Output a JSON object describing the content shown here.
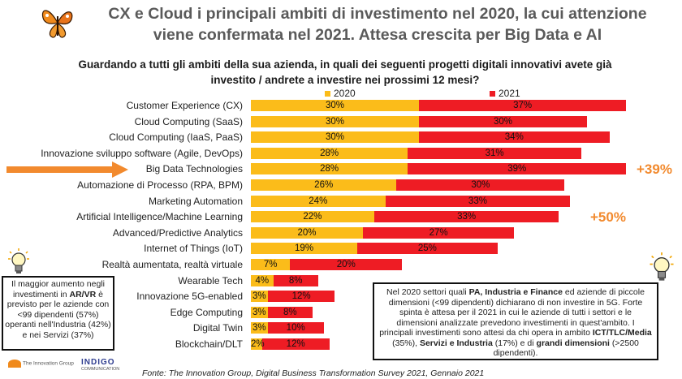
{
  "header": {
    "title_line1": "CX e Cloud i principali ambiti di investimento nel 2020, la cui attenzione",
    "title_line2": "viene confermata nel 2021. Attesa crescita per Big Data e AI",
    "question_line1": "Guardando a tutti gli ambiti della sua azienda, in quali dei seguenti progetti digitali innovativi avete già",
    "question_line2": "investito / andrete a investire nei prossimi 12 mesi?"
  },
  "colors": {
    "y2020": "#fbbc1a",
    "y2021": "#ee1c24",
    "growth": "#f28a2e",
    "title": "#5a5a5a"
  },
  "chart_data": {
    "type": "bar",
    "orientation": "horizontal",
    "stacked": true,
    "legend_position": "top",
    "categories": [
      "Customer Experience (CX)",
      "Cloud Computing (SaaS)",
      "Cloud Computing (IaaS, PaaS)",
      "Innovazione sviluppo software (Agile, DevOps)",
      "Big Data Technologies",
      "Automazione di Processo (RPA, BPM)",
      "Marketing Automation",
      "Artificial Intelligence/Machine Learning",
      "Advanced/Predictive Analytics",
      "Internet of Things (IoT)",
      "Realtà aumentata, realtà virtuale",
      "Wearable Tech",
      "Innovazione 5G-enabled",
      "Edge Computing",
      "Digital Twin",
      "Blockchain/DLT"
    ],
    "series": [
      {
        "name": "2020",
        "values": [
          30,
          30,
          30,
          28,
          28,
          26,
          24,
          22,
          20,
          19,
          7,
          4,
          3,
          3,
          3,
          2
        ]
      },
      {
        "name": "2021",
        "values": [
          37,
          30,
          34,
          31,
          39,
          30,
          33,
          33,
          27,
          25,
          20,
          8,
          12,
          8,
          10,
          12
        ]
      }
    ],
    "annotations": [
      {
        "category": "Big Data Technologies",
        "text": "+39%"
      },
      {
        "category": "Artificial Intelligence/Machine Learning",
        "text": "+50%"
      }
    ]
  },
  "notes": {
    "left": [
      {
        "t": "Il maggior aumento negli investimenti in ",
        "b": false
      },
      {
        "t": "AR/VR",
        "b": true
      },
      {
        "t": " è previsto per le aziende con <99 dipendenti (57%) operanti nell'Industria (42%) e nei Servizi (37%)",
        "b": false
      }
    ],
    "right": [
      {
        "t": "Nel 2020 settori quali ",
        "b": false
      },
      {
        "t": "PA, Industria e Finance",
        "b": true
      },
      {
        "t": " ed aziende di piccole dimensioni (<99 dipendenti) dichiarano di non investire in 5G. Forte spinta è attesa per il 2021 in cui le aziende di tutti i settori e le dimensioni analizzate prevedono investimenti in quest'ambito. I principali investimenti sono attesi da chi opera in ambito ",
        "b": false
      },
      {
        "t": "ICT/TLC/Media",
        "b": true
      },
      {
        "t": " (35%), ",
        "b": false
      },
      {
        "t": "Servizi e Industria",
        "b": true
      },
      {
        "t": " (17%) e di ",
        "b": false
      },
      {
        "t": "grandi dimensioni",
        "b": true
      },
      {
        "t": " (>2500 dipendenti).",
        "b": false
      }
    ]
  },
  "source": {
    "label": "Fonte",
    "text": ": The Innovation Group, Digital Business Transformation Survey 2021, Gennaio 2021"
  },
  "logos": {
    "tig": "The Innovation Group",
    "indigo": "INDIGO",
    "indigo_sub": "COMMUNICATION"
  }
}
